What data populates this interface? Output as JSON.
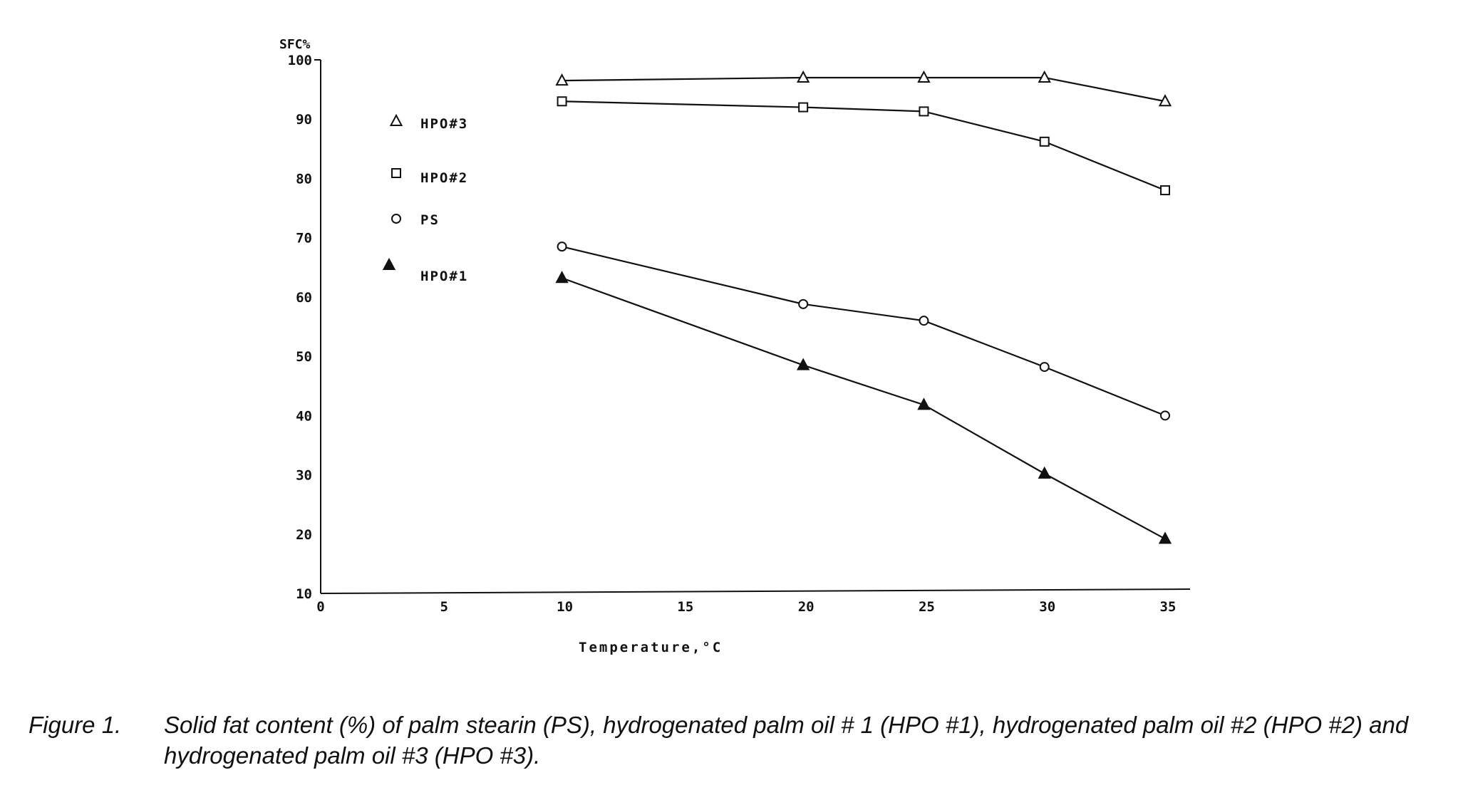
{
  "chart_data": {
    "type": "line",
    "xlabel": "Temperature,°C",
    "ylabel": "SFC%",
    "xlim": [
      0,
      37
    ],
    "ylim": [
      10,
      100
    ],
    "x_ticks": [
      0,
      5,
      10,
      15,
      20,
      25,
      30,
      35
    ],
    "x_tick_labels": [
      "0",
      "5",
      "10",
      "15",
      "20",
      "25",
      "30",
      "35"
    ],
    "y_ticks": [
      10,
      20,
      30,
      40,
      50,
      60,
      70,
      80,
      90,
      100
    ],
    "y_tick_labels": [
      "10",
      "20",
      "30",
      "40",
      "50",
      "60",
      "70",
      "80",
      "90",
      "100"
    ],
    "grid": false,
    "legend_position": "top-left",
    "series": [
      {
        "name": "HPO#3",
        "marker": "open-triangle",
        "x": [
          10,
          20,
          25,
          30,
          35
        ],
        "y": [
          96.5,
          97,
          97,
          97,
          93
        ]
      },
      {
        "name": "HPO#2",
        "marker": "open-square",
        "x": [
          10,
          20,
          25,
          30,
          35
        ],
        "y": [
          93,
          92,
          91.3,
          86.2,
          78
        ]
      },
      {
        "name": "PS",
        "marker": "open-circle",
        "x": [
          10,
          20,
          25,
          30,
          35
        ],
        "y": [
          68.5,
          58.8,
          56,
          48.2,
          40
        ]
      },
      {
        "name": "HPO#1",
        "marker": "filled-triangle",
        "x": [
          10,
          20,
          25,
          30,
          35
        ],
        "y": [
          63.2,
          48.5,
          41.8,
          30.2,
          19.2
        ]
      }
    ]
  },
  "caption": {
    "label": "Figure 1.",
    "text": "Solid fat content (%) of palm stearin (PS), hydrogenated palm oil #  1 (HPO #1), hydrogenated palm oil #2 (HPO #2) and hydrogenated palm oil #3 (HPO #3)."
  }
}
